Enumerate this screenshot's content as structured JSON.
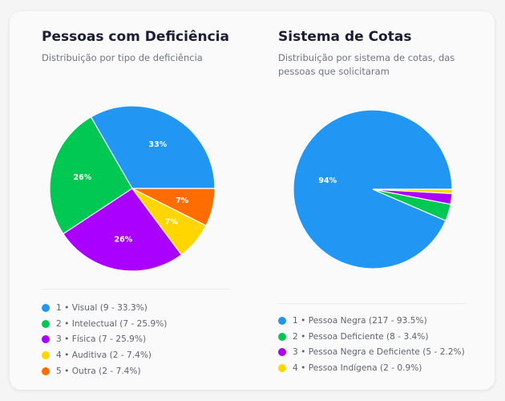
{
  "chart_data": [
    {
      "type": "pie",
      "title": "Pessoas com Deficiência",
      "subtitle": "Distribuição por tipo de deficiência",
      "legend_position": "bottom",
      "categories": [
        "Visual",
        "Intelectual",
        "Física",
        "Auditiva",
        "Outra"
      ],
      "values": [
        9,
        7,
        7,
        2,
        2
      ],
      "percents": [
        33.3,
        25.9,
        25.9,
        7.4,
        7.4
      ],
      "slice_labels": [
        "33%",
        "26%",
        "26%",
        "7%",
        "7%"
      ],
      "colors": [
        "#2196f3",
        "#00c853",
        "#aa00ff",
        "#ffd600",
        "#ff6d00"
      ],
      "legend": [
        "1 • Visual (9 - 33.3%)",
        "2 • Intelectual (7 - 25.9%)",
        "3 • Física (7 - 25.9%)",
        "4 • Auditiva (2 - 7.4%)",
        "5 • Outra (2 - 7.4%)"
      ]
    },
    {
      "type": "pie",
      "title": "Sistema de Cotas",
      "subtitle": "Distribuição por sistema de cotas, das pessoas que solicitaram",
      "legend_position": "bottom",
      "categories": [
        "Pessoa Negra",
        "Pessoa Deficiente",
        "Pessoa Negra e Deficiente",
        "Pessoa Indígena"
      ],
      "values": [
        217,
        8,
        5,
        2
      ],
      "percents": [
        93.5,
        3.4,
        2.2,
        0.9
      ],
      "slice_labels": [
        "94%",
        "",
        "",
        ""
      ],
      "colors": [
        "#2196f3",
        "#00c853",
        "#aa00ff",
        "#ffd600"
      ],
      "legend": [
        "1 • Pessoa Negra (217 - 93.5%)",
        "2 • Pessoa Deficiente (8 - 3.4%)",
        "3 • Pessoa Negra e Deficiente (5 - 2.2%)",
        "4 • Pessoa Indígena (2 - 0.9%)"
      ]
    }
  ]
}
